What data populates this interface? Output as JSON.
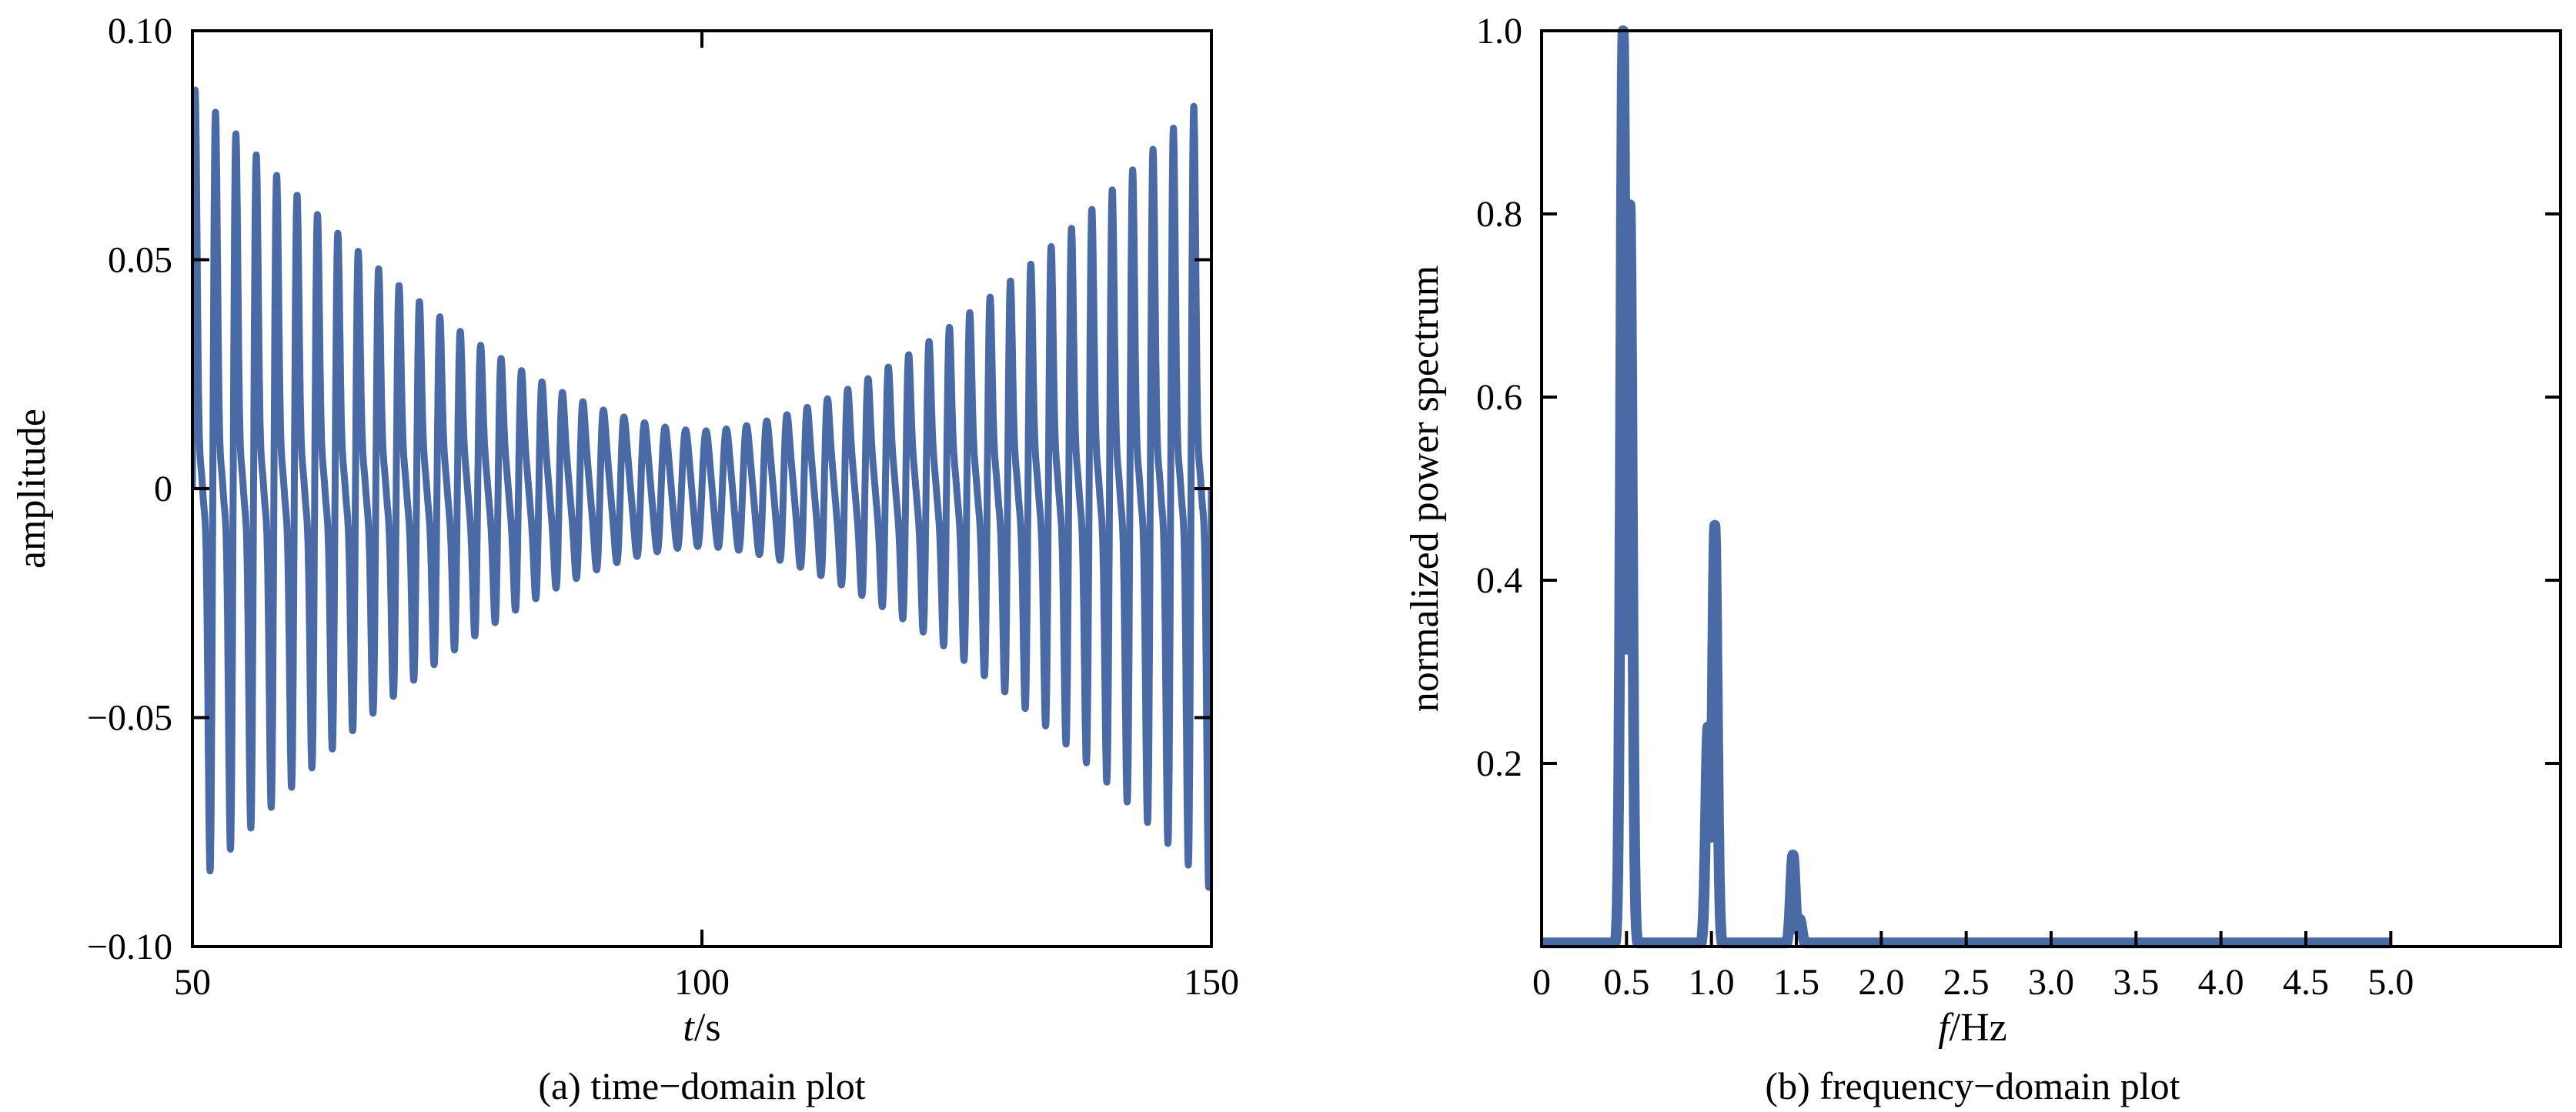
{
  "colors": {
    "series": "#4a6aa5",
    "axis": "#000000",
    "background": "#ffffff"
  },
  "chart_data": [
    {
      "type": "line",
      "caption": "(a) time−domain plot",
      "xlabel_italic": "t",
      "xlabel_unit": "/s",
      "ylabel": "amplitude",
      "xlim": [
        50,
        150
      ],
      "ylim": [
        -0.1,
        0.1
      ],
      "xticks": [
        50,
        100,
        150
      ],
      "xtick_labels": [
        "50",
        "100",
        "150"
      ],
      "yticks": [
        -0.1,
        -0.05,
        0,
        0.05,
        0.1
      ],
      "ytick_labels": [
        "−0.10",
        "−0.05",
        "0",
        "0.05",
        "0.10"
      ],
      "grid": false,
      "signal": {
        "components": [
          {
            "freq_hz": 0.5,
            "amp_max": 0.055,
            "amp_min": 0.012
          },
          {
            "freq_hz": 1.0,
            "amp_max": 0.04,
            "amp_min": 0.002
          },
          {
            "freq_hz": 1.5,
            "amp_max": 0.012,
            "amp_min": 0.0
          }
        ],
        "center_t": 100,
        "envelope_halfwidth_t": 50
      }
    },
    {
      "type": "line",
      "caption": "(b) frequency−domain plot",
      "xlabel_italic": "f",
      "xlabel_unit": "/Hz",
      "ylabel": "normalized power spectrum",
      "xlim": [
        0,
        6
      ],
      "ylim": [
        0,
        1.0
      ],
      "xticks": [
        0,
        0.5,
        1.0,
        1.5,
        2.0,
        2.5,
        3.0,
        3.5,
        4.0,
        4.5,
        5.0
      ],
      "xtick_labels": [
        "0",
        "0.5",
        "1.0",
        "1.5",
        "2.0",
        "2.5",
        "3.0",
        "3.5",
        "4.0",
        "4.5",
        "5.0"
      ],
      "yticks": [
        0.2,
        0.4,
        0.6,
        0.8,
        1.0
      ],
      "ytick_labels": [
        "0.2",
        "0.4",
        "0.6",
        "0.8",
        "1.0"
      ],
      "grid": false,
      "peaks": [
        {
          "freq_hz": 0.48,
          "value": 1.0
        },
        {
          "freq_hz": 0.52,
          "value": 0.81
        },
        {
          "freq_hz": 0.98,
          "value": 0.24
        },
        {
          "freq_hz": 1.02,
          "value": 0.46
        },
        {
          "freq_hz": 1.48,
          "value": 0.1
        },
        {
          "freq_hz": 1.52,
          "value": 0.03
        }
      ],
      "data_end_hz": 5.0
    }
  ]
}
